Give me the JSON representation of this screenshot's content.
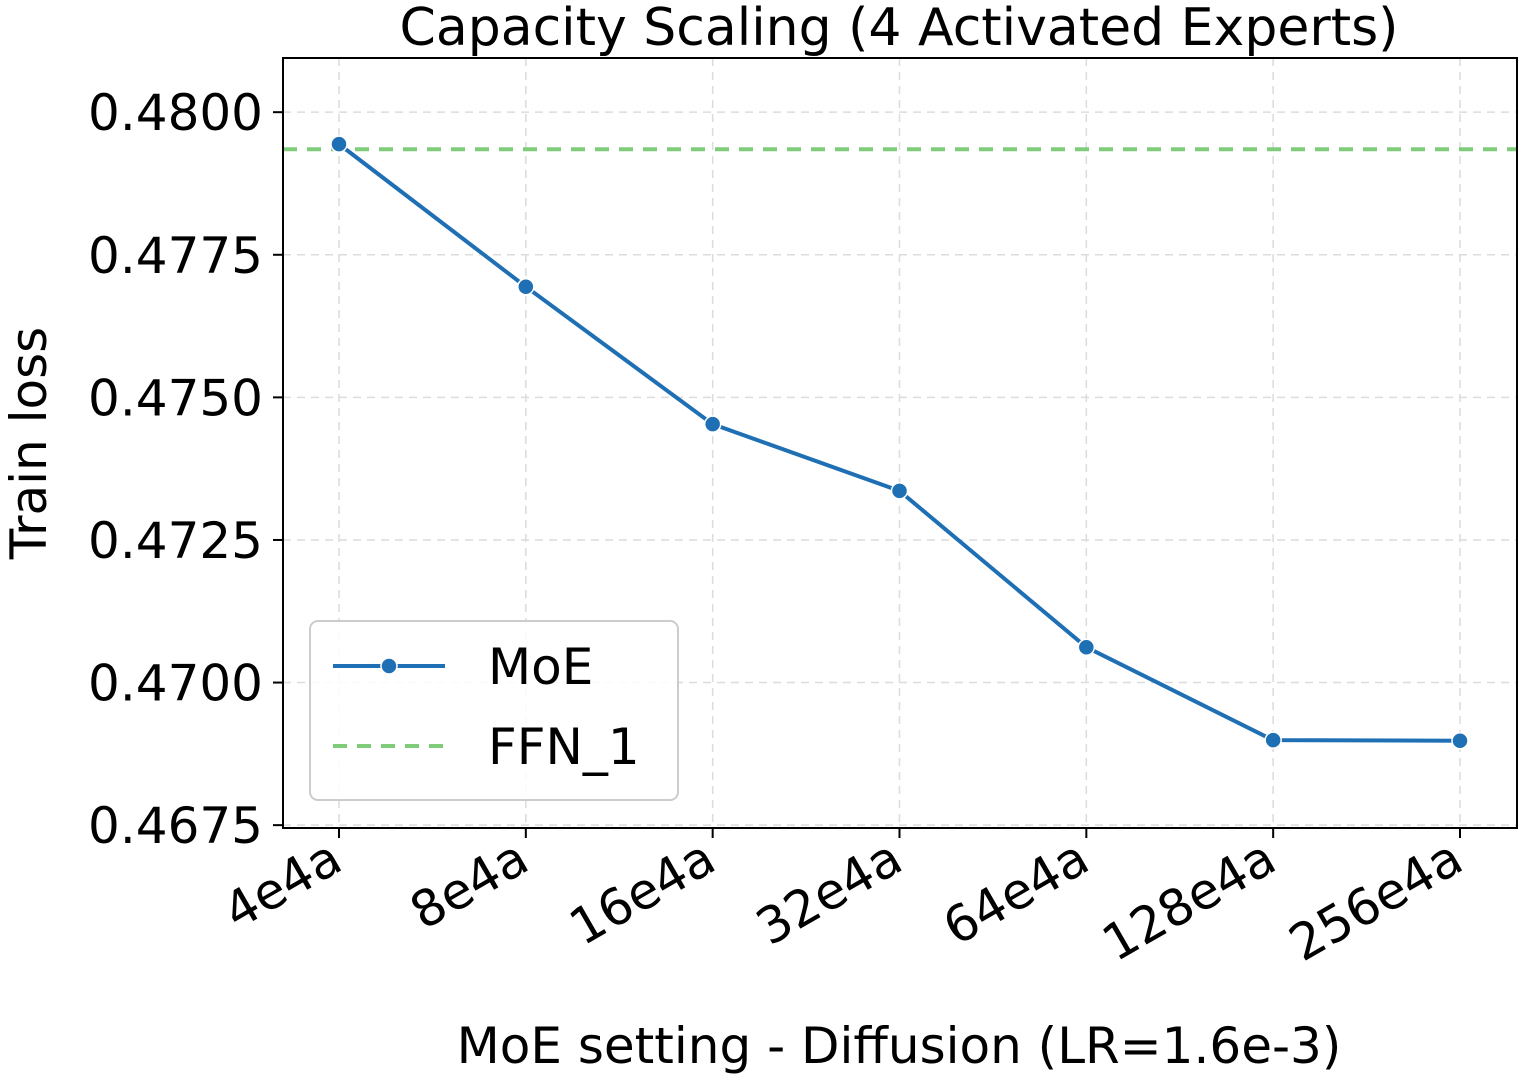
{
  "chart_data": {
    "type": "line",
    "title": "Capacity Scaling (4 Activated Experts)",
    "xlabel": "MoE setting - Diffusion (LR=1.6e-3)",
    "ylabel": "Train loss",
    "categories": [
      "4e4a",
      "8e4a",
      "16e4a",
      "32e4a",
      "64e4a",
      "128e4a",
      "256e4a"
    ],
    "yticks": [
      0.4675,
      0.47,
      0.4725,
      0.475,
      0.4775,
      0.48
    ],
    "ytick_labels": [
      "0.4675",
      "0.4700",
      "0.4725",
      "0.4750",
      "0.4775",
      "0.4800"
    ],
    "ylim": [
      0.46745,
      0.48095
    ],
    "grid": true,
    "legend_position": "lower-left",
    "series": [
      {
        "name": "MoE",
        "values": [
          0.47944,
          0.47694,
          0.47453,
          0.47336,
          0.47062,
          0.46899,
          0.46898
        ],
        "color": "#1f6fb5",
        "style": "solid",
        "marker": "circle"
      }
    ],
    "reference_lines": [
      {
        "name": "FFN_1",
        "value": 0.47935,
        "color": "#7fcc7a",
        "style": "dashed"
      }
    ]
  }
}
